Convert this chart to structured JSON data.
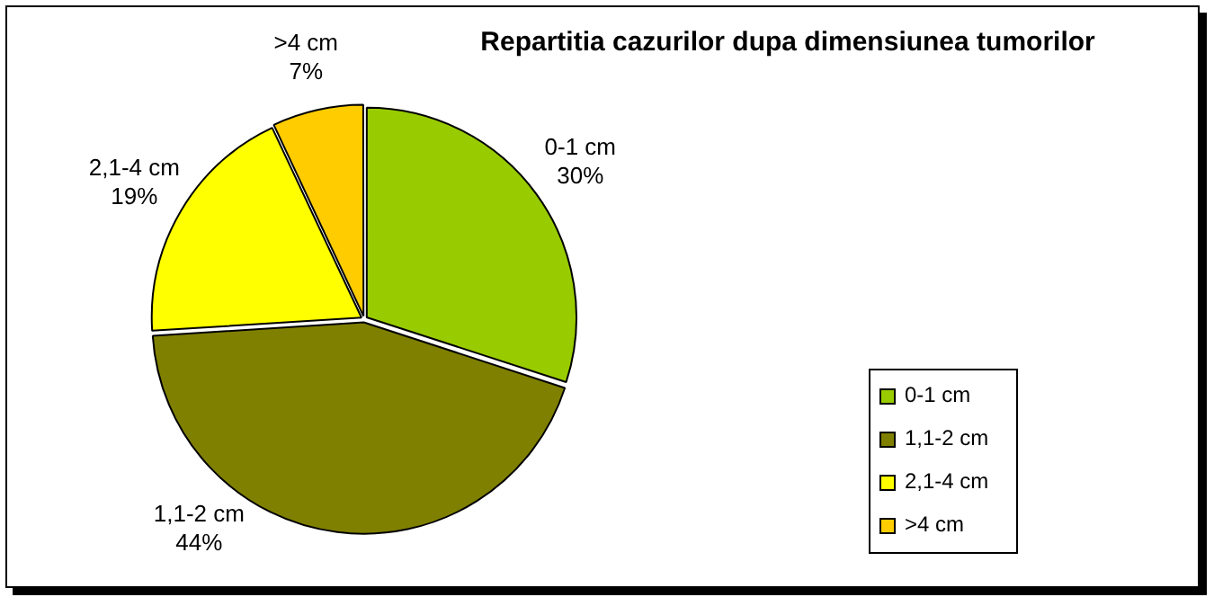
{
  "chart_data": {
    "type": "pie",
    "title": "Repartitia cazurilor dupa dimensiunea tumorilor",
    "categories": [
      "0-1 cm",
      "1,1-2 cm",
      "2,1-4 cm",
      ">4 cm"
    ],
    "values": [
      30,
      44,
      19,
      7
    ],
    "colors": [
      "#99cc00",
      "#808000",
      "#ffff00",
      "#ffcc00"
    ],
    "value_labels": [
      "30%",
      "44%",
      "19%",
      "7%"
    ],
    "legend": "bottom right"
  }
}
